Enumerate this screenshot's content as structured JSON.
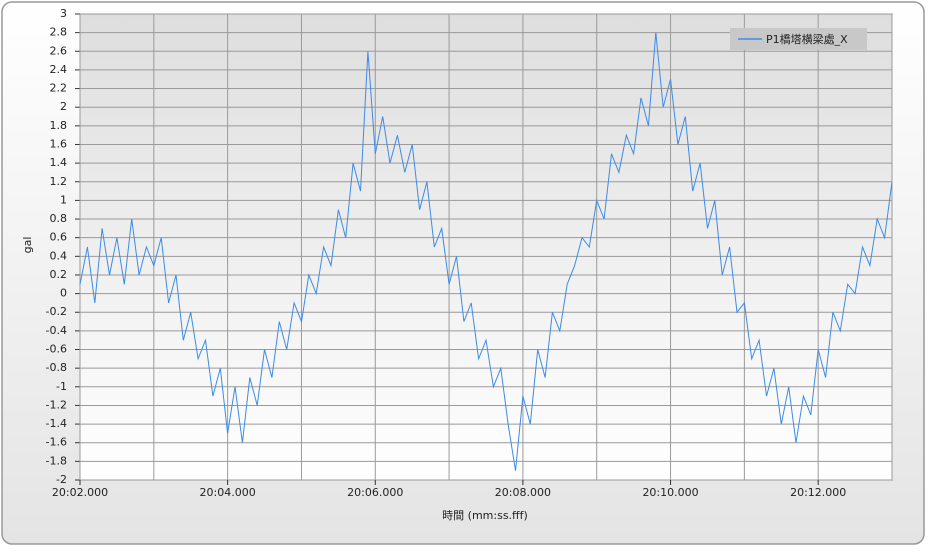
{
  "chart_data": {
    "type": "line",
    "x_label": "時間 (mm:ss.fff)",
    "y_label": "gal",
    "x": [
      1202,
      1202.1,
      1202.2,
      1202.3,
      1202.4,
      1202.5,
      1202.6,
      1202.7,
      1202.8,
      1202.9,
      1203,
      1203.1,
      1203.2,
      1203.3,
      1203.4,
      1203.5,
      1203.6,
      1203.7,
      1203.8,
      1203.9,
      1204,
      1204.1,
      1204.2,
      1204.3,
      1204.4,
      1204.5,
      1204.6,
      1204.7,
      1204.8,
      1204.9,
      1205,
      1205.1,
      1205.2,
      1205.3,
      1205.4,
      1205.5,
      1205.6,
      1205.7,
      1205.8,
      1205.9,
      1206,
      1206.1,
      1206.2,
      1206.3,
      1206.4,
      1206.5,
      1206.6,
      1206.7,
      1206.8,
      1206.9,
      1207,
      1207.1,
      1207.2,
      1207.3,
      1207.4,
      1207.5,
      1207.6,
      1207.7,
      1207.8,
      1207.9,
      1208,
      1208.1,
      1208.2,
      1208.3,
      1208.4,
      1208.5,
      1208.6,
      1208.7,
      1208.8,
      1208.9,
      1209,
      1209.1,
      1209.2,
      1209.3,
      1209.4,
      1209.5,
      1209.6,
      1209.7,
      1209.8,
      1209.9,
      1210,
      1210.1,
      1210.2,
      1210.3,
      1210.4,
      1210.5,
      1210.6,
      1210.7,
      1210.8,
      1210.9,
      1211,
      1211.1,
      1211.2,
      1211.3,
      1211.4,
      1211.5,
      1211.6,
      1211.7,
      1211.8,
      1211.9,
      1212,
      1212.1,
      1212.2,
      1212.3,
      1212.4,
      1212.5,
      1212.6,
      1212.7,
      1212.8,
      1212.9,
      1213
    ],
    "series": [
      {
        "name": "P1橋塔横梁處_X",
        "color": "#3c8ce6",
        "values": [
          0.1,
          0.5,
          -0.1,
          0.7,
          0.2,
          0.6,
          0.1,
          0.8,
          0.2,
          0.5,
          0.3,
          0.6,
          -0.1,
          0.2,
          -0.5,
          -0.2,
          -0.7,
          -0.5,
          -1.1,
          -0.8,
          -1.5,
          -1.0,
          -1.6,
          -0.9,
          -1.2,
          -0.6,
          -0.9,
          -0.3,
          -0.6,
          -0.1,
          -0.3,
          0.2,
          0.0,
          0.5,
          0.3,
          0.9,
          0.6,
          1.4,
          1.1,
          2.6,
          1.5,
          1.9,
          1.4,
          1.7,
          1.3,
          1.6,
          0.9,
          1.2,
          0.5,
          0.7,
          0.1,
          0.4,
          -0.3,
          -0.1,
          -0.7,
          -0.5,
          -1.0,
          -0.8,
          -1.4,
          -1.9,
          -1.1,
          -1.4,
          -0.6,
          -0.9,
          -0.2,
          -0.4,
          0.1,
          0.3,
          0.6,
          0.5,
          1.0,
          0.8,
          1.5,
          1.3,
          1.7,
          1.5,
          2.1,
          1.8,
          2.8,
          2.0,
          2.3,
          1.6,
          1.9,
          1.1,
          1.4,
          0.7,
          1.0,
          0.2,
          0.5,
          -0.2,
          -0.1,
          -0.7,
          -0.5,
          -1.1,
          -0.8,
          -1.4,
          -1.0,
          -1.6,
          -1.1,
          -1.3,
          -0.6,
          -0.9,
          -0.2,
          -0.4,
          0.1,
          0.0,
          0.5,
          0.3,
          0.8,
          0.6,
          1.2
        ]
      }
    ],
    "xlim": [
      1202,
      1213
    ],
    "xticks": [
      {
        "value": 1202,
        "label": "20:02.000"
      },
      {
        "value": 1204,
        "label": "20:04.000"
      },
      {
        "value": 1206,
        "label": "20:06.000"
      },
      {
        "value": 1208,
        "label": "20:08.000"
      },
      {
        "value": 1210,
        "label": "20:10.000"
      },
      {
        "value": 1212,
        "label": "20:12.000"
      }
    ],
    "x_minor_grid": [
      1203,
      1205,
      1207,
      1209,
      1211,
      1213
    ],
    "ylim": [
      -2,
      3
    ],
    "yticks": [
      -2,
      -1.8,
      -1.6,
      -1.4,
      -1.2,
      -1,
      -0.8,
      -0.6,
      -0.4,
      -0.2,
      0,
      0.2,
      0.4,
      0.6,
      0.8,
      1,
      1.2,
      1.4,
      1.6,
      1.8,
      2,
      2.2,
      2.4,
      2.6,
      2.8,
      3
    ],
    "grid": true,
    "legend": "top-right"
  }
}
